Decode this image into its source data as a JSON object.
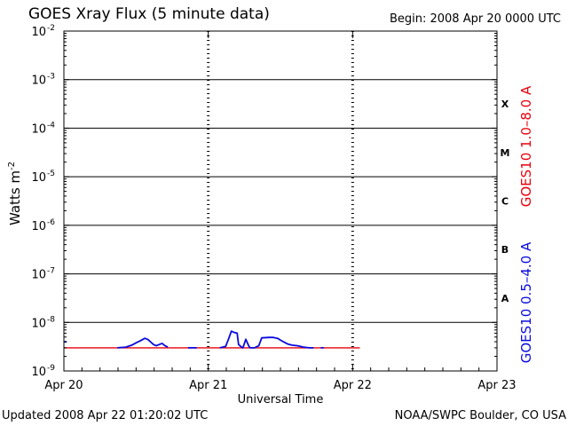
{
  "header": {
    "title": "GOES Xray Flux (5 minute data)",
    "begin": "Begin:  2008 Apr 20 0000 UTC"
  },
  "footer": {
    "updated": "Updated 2008 Apr 22 01:20:02 UTC",
    "credit": "NOAA/SWPC Boulder, CO USA"
  },
  "chart_data": {
    "type": "line",
    "title": "GOES Xray Flux (5 minute data)",
    "xlabel": "Universal Time",
    "ylabel": "Watts m⁻²",
    "yscale": "log",
    "ylim": [
      1e-09,
      0.01
    ],
    "xlim": [
      0,
      3
    ],
    "x_unit": "days since 2008 Apr 20 0000 UTC",
    "x_ticks": [
      {
        "x": 0,
        "label": "Apr 20"
      },
      {
        "x": 1,
        "label": "Apr 21"
      },
      {
        "x": 2,
        "label": "Apr 22"
      },
      {
        "x": 3,
        "label": "Apr 23"
      }
    ],
    "y_ticks": [
      {
        "exp": -9,
        "base": "10",
        "sup": "-9"
      },
      {
        "exp": -8,
        "base": "10",
        "sup": "-8"
      },
      {
        "exp": -7,
        "base": "10",
        "sup": "-7"
      },
      {
        "exp": -6,
        "base": "10",
        "sup": "-6"
      },
      {
        "exp": -5,
        "base": "10",
        "sup": "-5"
      },
      {
        "exp": -4,
        "base": "10",
        "sup": "-4"
      },
      {
        "exp": -3,
        "base": "10",
        "sup": "-3"
      },
      {
        "exp": -2,
        "base": "10",
        "sup": "-2"
      }
    ],
    "flare_classes": [
      {
        "label": "X",
        "exp_mid": -3.5
      },
      {
        "label": "M",
        "exp_mid": -4.5
      },
      {
        "label": "C",
        "exp_mid": -5.5
      },
      {
        "label": "B",
        "exp_mid": -6.5
      },
      {
        "label": "A",
        "exp_mid": -7.5
      }
    ],
    "grid": "horizontal at each decade",
    "series": [
      {
        "name": "GOES10 1.0–8.0 A",
        "color": "#e8000b",
        "points": [
          [
            0.0,
            3e-09
          ],
          [
            0.25,
            3e-09
          ],
          [
            0.5,
            3e-09
          ],
          [
            0.75,
            3e-09
          ],
          [
            1.0,
            3e-09
          ],
          [
            1.25,
            3e-09
          ],
          [
            1.5,
            3e-09
          ],
          [
            1.75,
            3e-09
          ],
          [
            2.05,
            3e-09
          ]
        ]
      },
      {
        "name": "GOES10 0.5–4.0 A",
        "color": "#0a0ae0",
        "points": [
          [
            0.0,
            4e-09
          ],
          [
            0.02,
            4e-09
          ],
          [
            0.03,
            null
          ],
          [
            0.37,
            3e-09
          ],
          [
            0.43,
            3.1e-09
          ],
          [
            0.47,
            3.4e-09
          ],
          [
            0.5,
            3.8e-09
          ],
          [
            0.53,
            4.2e-09
          ],
          [
            0.56,
            4.7e-09
          ],
          [
            0.58,
            4.5e-09
          ],
          [
            0.6,
            4e-09
          ],
          [
            0.62,
            3.5e-09
          ],
          [
            0.64,
            3.3e-09
          ],
          [
            0.66,
            3.5e-09
          ],
          [
            0.68,
            3.7e-09
          ],
          [
            0.7,
            3.3e-09
          ],
          [
            0.72,
            3.1e-09
          ],
          [
            0.735,
            null
          ],
          [
            0.86,
            3e-09
          ],
          [
            0.92,
            3e-09
          ],
          [
            0.935,
            null
          ],
          [
            1.08,
            3e-09
          ],
          [
            1.12,
            3.2e-09
          ],
          [
            1.14,
            4.5e-09
          ],
          [
            1.16,
            6.6e-09
          ],
          [
            1.18,
            6.2e-09
          ],
          [
            1.2,
            6e-09
          ],
          [
            1.21,
            3.5e-09
          ],
          [
            1.23,
            3.1e-09
          ],
          [
            1.24,
            3e-09
          ],
          [
            1.26,
            4.5e-09
          ],
          [
            1.28,
            3.3e-09
          ],
          [
            1.29,
            3e-09
          ],
          [
            1.32,
            3e-09
          ],
          [
            1.35,
            3.3e-09
          ],
          [
            1.37,
            4.8e-09
          ],
          [
            1.42,
            4.9e-09
          ],
          [
            1.45,
            4.9e-09
          ],
          [
            1.48,
            4.7e-09
          ],
          [
            1.52,
            4e-09
          ],
          [
            1.55,
            3.6e-09
          ],
          [
            1.58,
            3.4e-09
          ],
          [
            1.62,
            3.3e-09
          ],
          [
            1.66,
            3.1e-09
          ],
          [
            1.7,
            3e-09
          ],
          [
            1.73,
            3e-09
          ],
          [
            1.74,
            null
          ],
          [
            1.78,
            3e-09
          ],
          [
            1.8,
            3e-09
          ]
        ]
      }
    ]
  }
}
